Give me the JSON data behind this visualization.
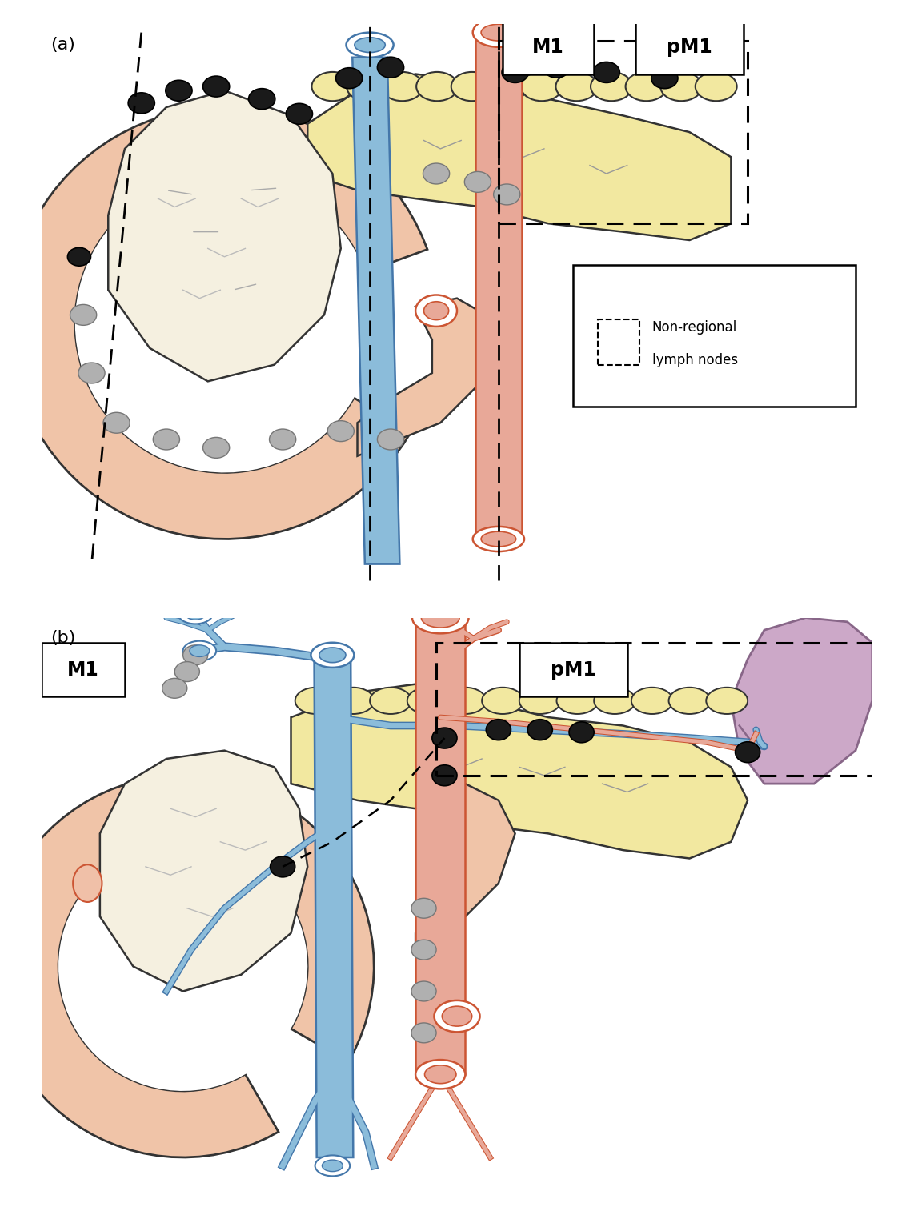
{
  "title_a": "(a)",
  "title_b": "(b)",
  "label_m1_a": "M1",
  "label_pm1_a": "pM1",
  "label_m1_b": "M1",
  "label_pm1_b": "pM1",
  "legend_text_line1": "Non-regional",
  "legend_text_line2": "lymph nodes",
  "bg_color": "#ffffff",
  "pancreas_yellow": "#F2E8A0",
  "pancreas_edge": "#333333",
  "duodenum_pink": "#F0C4A8",
  "duodenum_edge": "#333333",
  "blue_fill": "#8BBCDA",
  "blue_edge": "#4477AA",
  "red_fill": "#E8A898",
  "red_edge": "#CC5533",
  "black_node": "#1a1a1a",
  "gray_node_fill": "#B0B0B0",
  "gray_node_edge": "#777777",
  "spleen_fill": "#CCA8C8",
  "spleen_edge": "#886688",
  "white_fill": "#FFFFFF",
  "cream_fill": "#F5F0E0"
}
